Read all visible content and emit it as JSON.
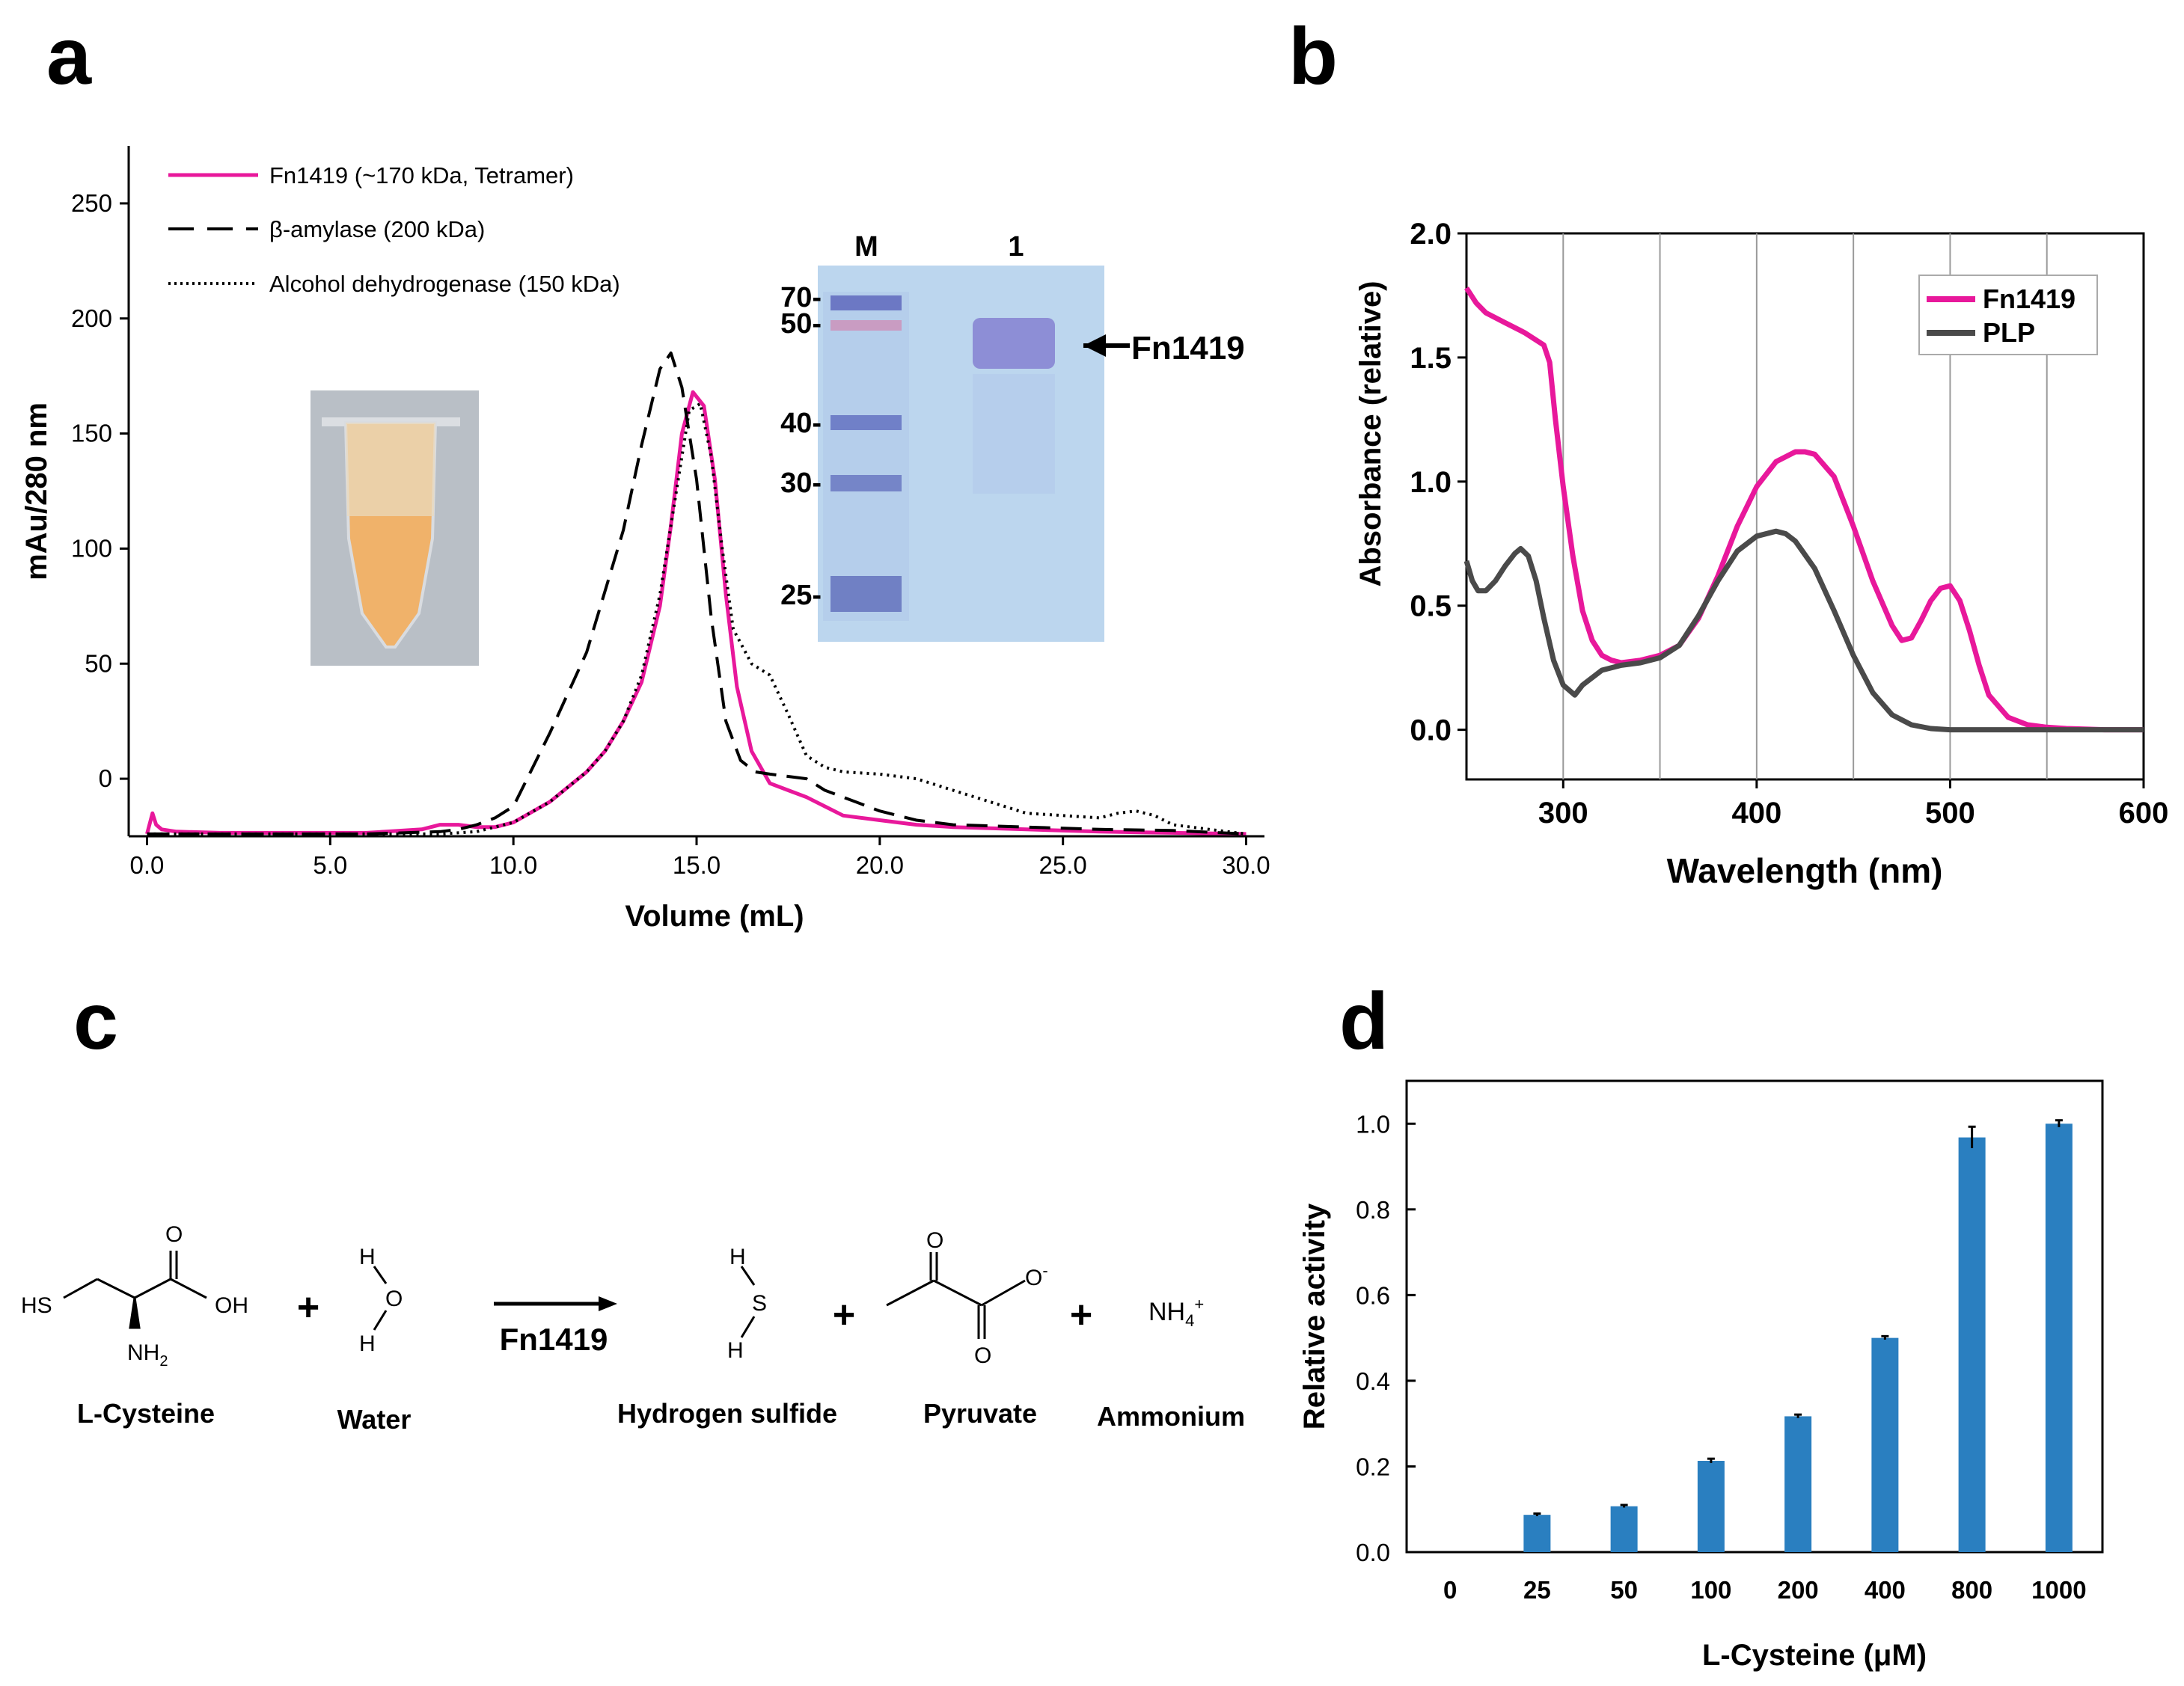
{
  "panels": {
    "a": "a",
    "b": "b",
    "c": "c",
    "d": "d"
  },
  "colors": {
    "fn1419": "#e8189b",
    "plp": "#4a4a4a",
    "bar": "#2a7fc0",
    "gel_bg": "#bcd6ee",
    "grid": "#9a9a9a"
  },
  "chart_data": [
    {
      "id": "a",
      "type": "line",
      "xlabel": "Volume (mL)",
      "ylabel": "mAu/280 nm",
      "xlim": [
        -0.5,
        30.5
      ],
      "ylim": [
        -25,
        275
      ],
      "x_ticks": [
        0,
        5,
        10,
        15,
        20,
        25,
        30
      ],
      "x_tick_labels": [
        "0.0",
        "5.0",
        "10.0",
        "15.0",
        "20.0",
        "25.0",
        "30.0"
      ],
      "y_ticks": [
        0,
        50,
        100,
        150,
        200,
        250
      ],
      "y_tick_labels": [
        "0",
        "50",
        "100",
        "150",
        "200",
        "250"
      ],
      "series": [
        {
          "name": "Fn1419 (~170 kDa, Tetramer)",
          "style": "solid",
          "x": [
            0,
            0.15,
            0.25,
            0.4,
            0.8,
            2,
            4,
            6,
            7.5,
            8,
            8.5,
            9,
            9.5,
            10,
            11,
            12,
            12.5,
            13,
            13.5,
            14,
            14.3,
            14.6,
            14.9,
            15.2,
            15.5,
            15.8,
            16.1,
            16.5,
            17,
            17.5,
            18,
            18.5,
            19,
            20,
            21,
            22,
            24,
            26,
            28,
            30
          ],
          "y": [
            -24,
            -15,
            -20,
            -22,
            -23,
            -23.5,
            -23.5,
            -23.5,
            -22,
            -20,
            -20,
            -21,
            -21,
            -19,
            -10,
            3,
            12,
            25,
            42,
            75,
            110,
            150,
            168,
            162,
            130,
            80,
            40,
            12,
            -2,
            -5,
            -8,
            -12,
            -16,
            -18,
            -20,
            -21,
            -22,
            -23,
            -23.5,
            -24
          ]
        },
        {
          "name": "β-amylase  (200 kDa)",
          "style": "dashed",
          "x": [
            0,
            2,
            4,
            6,
            8,
            8.5,
            9,
            9.5,
            10,
            11,
            12,
            13,
            13.5,
            14,
            14.3,
            14.6,
            15,
            15.4,
            15.8,
            16.2,
            16.6,
            17,
            17.5,
            18,
            18.5,
            19,
            20,
            21,
            22,
            24,
            26,
            28,
            30
          ],
          "y": [
            -24,
            -24,
            -24,
            -24,
            -23,
            -22,
            -20,
            -17,
            -12,
            20,
            55,
            108,
            145,
            178,
            185,
            170,
            130,
            70,
            25,
            8,
            3,
            2,
            1,
            0,
            -5,
            -8,
            -14,
            -18,
            -20,
            -21,
            -22,
            -22.5,
            -24
          ]
        },
        {
          "name": "Alcohol dehydrogenase  (150 kDa)",
          "style": "dotted",
          "x": [
            0,
            2,
            4,
            6,
            8,
            9,
            10,
            11,
            12,
            12.5,
            13,
            13.5,
            14,
            14.5,
            14.8,
            15.1,
            15.4,
            15.7,
            16,
            16.5,
            17,
            17.5,
            18,
            18.5,
            19,
            20,
            21,
            22,
            23,
            24,
            25,
            26,
            26.5,
            27,
            27.5,
            28,
            29,
            30
          ],
          "y": [
            -24,
            -24,
            -24,
            -24,
            -24,
            -23,
            -19,
            -10,
            3,
            12,
            25,
            45,
            80,
            130,
            160,
            163,
            140,
            100,
            65,
            50,
            45,
            28,
            10,
            5,
            3,
            2,
            0,
            -5,
            -10,
            -15,
            -16,
            -17,
            -15,
            -14,
            -16,
            -20,
            -22,
            -24
          ]
        }
      ],
      "inset_gel": {
        "lanes": [
          "M",
          "1"
        ],
        "markers": [
          "70-",
          "50-",
          "40-",
          "30-",
          "25-"
        ],
        "band_label": "Fn1419"
      },
      "inset_photo": "tube"
    },
    {
      "id": "b",
      "type": "line",
      "xlabel": "Wavelength (nm)",
      "ylabel": "Absorbance (relative)",
      "xlim": [
        250,
        600
      ],
      "ylim": [
        -0.2,
        2.0
      ],
      "x_ticks": [
        300,
        400,
        500,
        600
      ],
      "x_tick_labels": [
        "300",
        "400",
        "500",
        "600"
      ],
      "y_ticks": [
        0.0,
        0.5,
        1.0,
        1.5,
        2.0
      ],
      "y_tick_labels": [
        "0.0",
        "0.5",
        "1.0",
        "1.5",
        "2.0"
      ],
      "grid_x": [
        300,
        350,
        400,
        450,
        500,
        550
      ],
      "legend": "top-right",
      "series": [
        {
          "name": "Fn1419",
          "x": [
            250,
            255,
            260,
            270,
            280,
            290,
            293,
            296,
            300,
            305,
            310,
            315,
            320,
            325,
            330,
            340,
            350,
            360,
            370,
            380,
            390,
            400,
            410,
            420,
            425,
            430,
            440,
            450,
            460,
            470,
            475,
            480,
            485,
            490,
            495,
            500,
            505,
            510,
            515,
            520,
            530,
            540,
            550,
            560,
            580,
            600
          ],
          "y": [
            1.78,
            1.72,
            1.68,
            1.64,
            1.6,
            1.55,
            1.48,
            1.25,
            0.98,
            0.7,
            0.48,
            0.36,
            0.3,
            0.28,
            0.27,
            0.28,
            0.3,
            0.34,
            0.45,
            0.62,
            0.82,
            0.98,
            1.08,
            1.12,
            1.12,
            1.11,
            1.02,
            0.82,
            0.6,
            0.42,
            0.36,
            0.37,
            0.44,
            0.52,
            0.57,
            0.58,
            0.52,
            0.4,
            0.26,
            0.14,
            0.05,
            0.02,
            0.01,
            0.005,
            0.0,
            0.0
          ]
        },
        {
          "name": "PLP",
          "x": [
            250,
            253,
            256,
            260,
            265,
            270,
            275,
            278,
            282,
            286,
            290,
            295,
            300,
            303,
            306,
            310,
            320,
            330,
            340,
            350,
            360,
            370,
            380,
            390,
            400,
            410,
            415,
            420,
            430,
            440,
            450,
            460,
            470,
            480,
            490,
            500,
            520,
            540,
            560,
            580,
            600
          ],
          "y": [
            0.68,
            0.6,
            0.56,
            0.56,
            0.6,
            0.66,
            0.71,
            0.73,
            0.7,
            0.6,
            0.45,
            0.28,
            0.18,
            0.16,
            0.14,
            0.18,
            0.24,
            0.26,
            0.27,
            0.29,
            0.34,
            0.46,
            0.6,
            0.72,
            0.78,
            0.8,
            0.79,
            0.76,
            0.65,
            0.48,
            0.3,
            0.15,
            0.06,
            0.02,
            0.005,
            0.0,
            0.0,
            0.0,
            0.0,
            0.0,
            0.0
          ]
        }
      ]
    },
    {
      "id": "d",
      "type": "bar",
      "xlabel": "L-Cysteine (μM)",
      "ylabel": "Relative activity",
      "ylim": [
        0,
        1.1
      ],
      "y_ticks": [
        0.0,
        0.2,
        0.4,
        0.6,
        0.8,
        1.0
      ],
      "y_tick_labels": [
        "0.0",
        "0.2",
        "0.4",
        "0.6",
        "0.8",
        "1.0"
      ],
      "categories": [
        "0",
        "25",
        "50",
        "100",
        "200",
        "400",
        "800",
        "1000"
      ],
      "values": [
        0,
        0.087,
        0.107,
        0.213,
        0.317,
        0.5,
        0.968,
        1.0
      ],
      "errors": [
        0,
        0.003,
        0.003,
        0.005,
        0.004,
        0.004,
        0.025,
        0.008
      ]
    }
  ],
  "reaction": {
    "reactants": [
      {
        "name": "L-Cysteine",
        "atoms": {
          "hs": "HS",
          "oh": "OH",
          "o": "O",
          "nh2": "NH",
          "sub2": "2"
        }
      },
      {
        "name": "Water",
        "atoms": {
          "h1": "H",
          "o": "O",
          "h2": "H"
        }
      }
    ],
    "enzyme": "Fn1419",
    "products": [
      {
        "name": "Hydrogen sulfide",
        "atoms": {
          "h1": "H",
          "s": "S",
          "h2": "H"
        }
      },
      {
        "name": "Pyruvate",
        "atoms": {
          "o1": "O",
          "o2": "O",
          "ominus": "O",
          "charge": "-"
        }
      },
      {
        "name": "Ammonium",
        "atoms": {
          "nh": "NH",
          "sub": "4",
          "sup": "+"
        }
      }
    ],
    "plus": "+"
  }
}
